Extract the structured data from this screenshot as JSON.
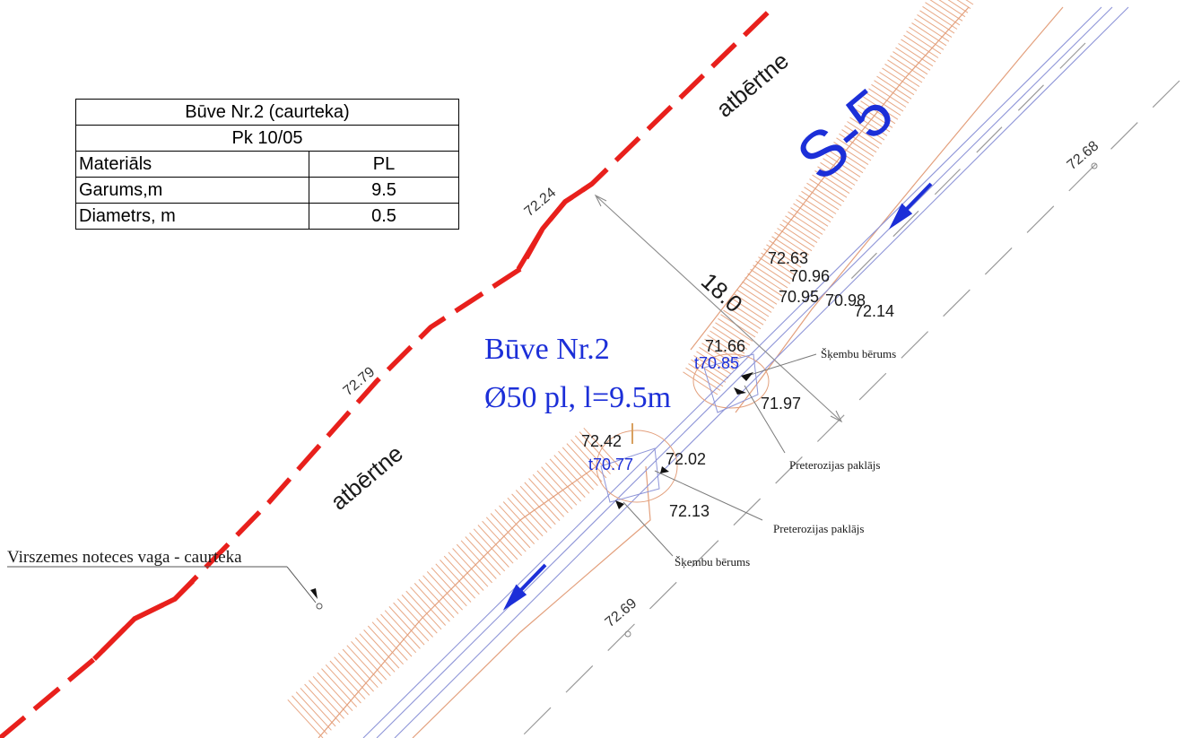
{
  "spec_table": {
    "title": "Būve Nr.2 (caurteka)",
    "picket": "Pk 10/05",
    "rows": [
      {
        "label": "Materiāls",
        "value": "PL"
      },
      {
        "label": "Garums,m",
        "value": "9.5"
      },
      {
        "label": "Diametrs, m",
        "value": "0.5"
      }
    ]
  },
  "labels": {
    "ditch_code": "S-5",
    "embankment_upper": "atbērtne",
    "embankment_lower": "atbērtne",
    "structure_title": "Būve Nr.2",
    "structure_spec": "Ø50 pl, l=9.5m",
    "dimension": "18.0",
    "surface_channel": "Virszemes noteces vaga - caurteka",
    "crushed_stone_upper": "Šķembu bērums",
    "crushed_stone_lower": "Šķembu bērums",
    "erosion_mat_upper": "Preterozijas paklājs",
    "erosion_mat_lower": "Preterozijas paklājs"
  },
  "elevations": {
    "e_72_24": "72.24",
    "e_72_79": "72.79",
    "e_72_68": "72.68",
    "e_72_69": "72.69",
    "e_72_63": "72.63",
    "e_70_96": "70.96",
    "e_70_95": "70.95",
    "e_70_98": "70.98",
    "e_72_14": "72.14",
    "e_71_66": "71.66",
    "t_70_85": "t70.85",
    "e_71_97": "71.97",
    "e_72_42": "72.42",
    "t_70_77": "t70.77",
    "e_72_02": "72.02",
    "e_72_13": "72.13"
  },
  "colors": {
    "embankment_line": "#e8201c",
    "ditch_hatch": "#e8a987",
    "ditch_axis": "#8e95d8",
    "annotation_blue": "#1c2fd8",
    "text": "#1a1a1a"
  }
}
